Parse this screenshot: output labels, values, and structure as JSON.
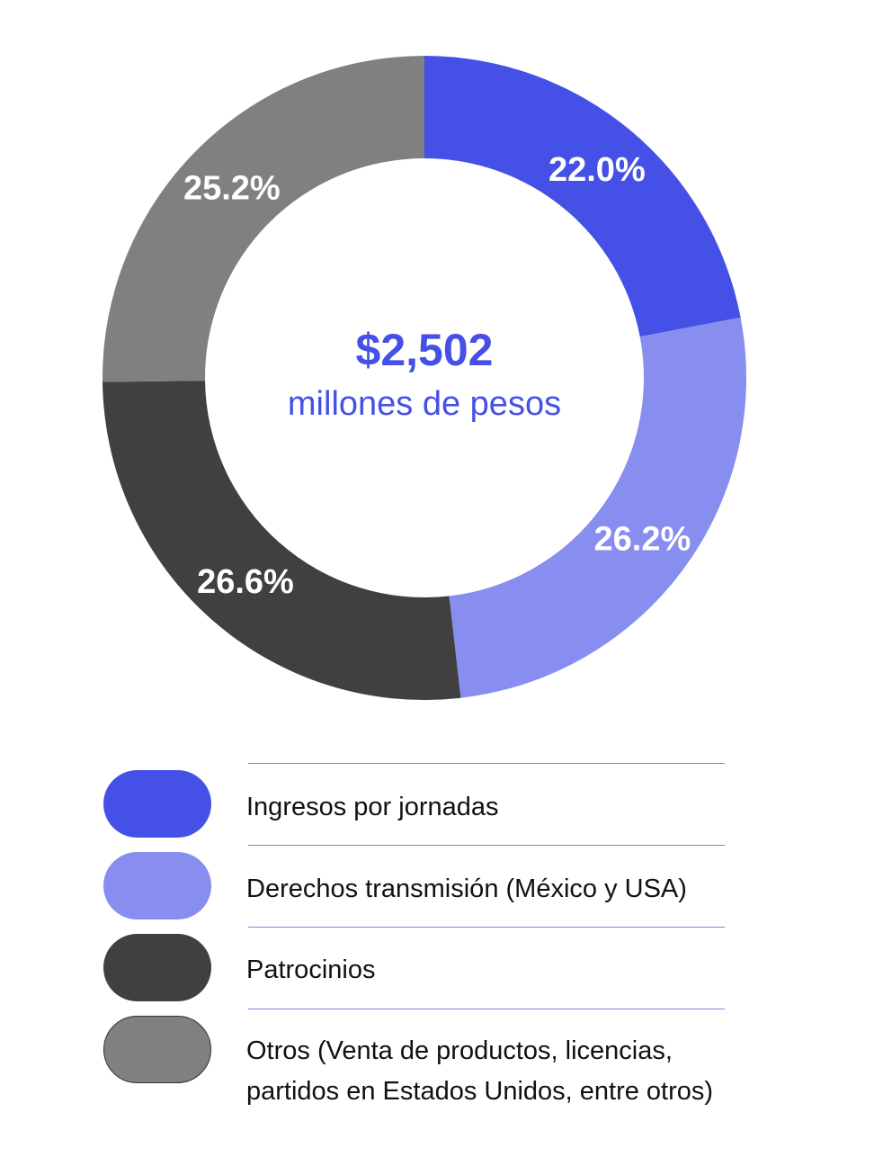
{
  "chart_data": {
    "type": "pie",
    "donut": true,
    "center_value": "$2,502",
    "center_subtitle": "millones de pesos",
    "slices": [
      {
        "label": "Ingresos por jornadas",
        "value": 22.0,
        "display": "22.0%",
        "color": "#4550E6"
      },
      {
        "label": "Derechos transmisión (México y USA)",
        "value": 26.2,
        "display": "26.2%",
        "color": "#878EEF"
      },
      {
        "label": "Patrocinios",
        "value": 26.6,
        "display": "26.6%",
        "color": "#404040"
      },
      {
        "label": "Otros (Venta de productos, licencias, partidos en Estados Unidos, entre otros)",
        "value": 25.2,
        "display": "25.2%",
        "color": "#808080"
      }
    ],
    "legend_placement": "bottom",
    "legend": {
      "items": [
        {
          "lines": [
            "Ingresos por jornadas"
          ]
        },
        {
          "lines": [
            "Derechos transmisión (México y USA)"
          ]
        },
        {
          "lines": [
            "Patrocinios"
          ]
        },
        {
          "lines": [
            "Otros (Venta de productos, licencias,",
            "partidos en Estados Unidos, entre otros)"
          ]
        }
      ]
    }
  }
}
